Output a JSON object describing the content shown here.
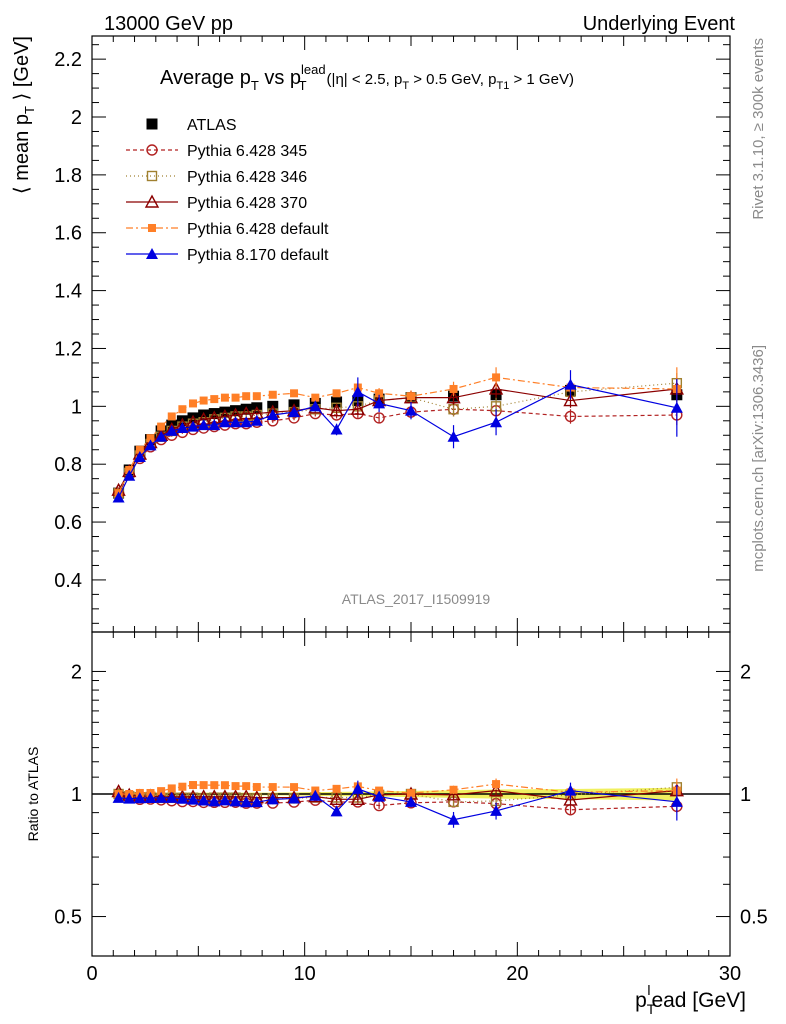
{
  "header": {
    "left": "13000 GeV pp",
    "right": "Underlying Event"
  },
  "title": {
    "main": "Average p",
    "main_sub": "T",
    "vs": " vs p",
    "vs_sup": "lead",
    "vs_sub": "T",
    "cuts_a": "(|η| < 2.5, p",
    "cuts_a_sub": "T",
    "cuts_b": " > 0.5 GeV, p",
    "cuts_b_sub": "T1",
    "cuts_c": " > 1 GeV)"
  },
  "side": {
    "rivet": "Rivet 3.1.10, ≥ 300k events",
    "mcplots": "mcplots.cern.ch [arXiv:1306.3436]"
  },
  "analysis_label": "ATLAS_2017_I1509919",
  "axes": {
    "ylabel_main": "⟨ mean p",
    "ylabel_main_sub": "T",
    "ylabel_main_end": " ⟩ [GeV]",
    "ylabel_ratio": "Ratio to ATLAS",
    "xlabel_p": "p",
    "xlabel_sub": "T",
    "xlabel_rest": "ead [GeV]",
    "xlabel_sup": "l"
  },
  "colors": {
    "atlas": "#000000",
    "p345": "#b22222",
    "p346": "#a08030",
    "p370": "#8b0000",
    "p6def": "#ff7f27",
    "p8def": "#0000e0",
    "band": "#f0f060",
    "band_inner": "#80e080"
  },
  "chart_data": [
    {
      "type": "scatter",
      "panel": "main",
      "xlim": [
        0,
        30
      ],
      "ylim": [
        0.22,
        2.28
      ],
      "x_ticks": [
        0,
        10,
        20,
        30
      ],
      "y_ticks": [
        0.4,
        0.6,
        0.8,
        1,
        1.2,
        1.4,
        1.6,
        1.8,
        2,
        2.2
      ],
      "x": [
        1.25,
        1.75,
        2.25,
        2.75,
        3.25,
        3.75,
        4.25,
        4.75,
        5.25,
        5.75,
        6.25,
        6.75,
        7.25,
        7.75,
        8.5,
        9.5,
        10.5,
        11.5,
        12.5,
        13.5,
        15,
        17,
        19,
        22.5,
        27.5
      ],
      "legend": {
        "placement": "top-left"
      },
      "series": [
        {
          "name": "ATLAS",
          "key": "atlas",
          "marker": "fsquare",
          "dash": "none",
          "values": [
            0.7,
            0.78,
            0.845,
            0.885,
            0.915,
            0.935,
            0.95,
            0.96,
            0.97,
            0.975,
            0.98,
            0.985,
            0.99,
            0.995,
            1.0,
            1.005,
            1.01,
            1.015,
            1.02,
            1.025,
            1.03,
            1.035,
            1.04,
            1.055,
            1.04
          ],
          "errors": [
            0.005,
            0.005,
            0.005,
            0.005,
            0.005,
            0.005,
            0.005,
            0.005,
            0.005,
            0.005,
            0.005,
            0.005,
            0.005,
            0.005,
            0.005,
            0.006,
            0.007,
            0.008,
            0.009,
            0.01,
            0.012,
            0.015,
            0.018,
            0.02,
            0.025
          ]
        },
        {
          "name": "Pythia 6.428 345",
          "key": "p345",
          "marker": "ocircle",
          "dash": "4,3",
          "values": [
            0.7,
            0.765,
            0.82,
            0.86,
            0.885,
            0.9,
            0.91,
            0.92,
            0.925,
            0.93,
            0.935,
            0.94,
            0.94,
            0.945,
            0.95,
            0.96,
            0.975,
            0.97,
            0.975,
            0.96,
            0.98,
            0.99,
            0.985,
            0.965,
            0.97
          ],
          "errors": [
            0.005,
            0.005,
            0.005,
            0.005,
            0.005,
            0.005,
            0.005,
            0.005,
            0.005,
            0.005,
            0.005,
            0.005,
            0.005,
            0.005,
            0.007,
            0.008,
            0.01,
            0.012,
            0.015,
            0.018,
            0.02,
            0.025,
            0.03,
            0.025,
            0.035
          ]
        },
        {
          "name": "Pythia 6.428 346",
          "key": "p346",
          "marker": "osquare",
          "dash": "1,3",
          "values": [
            0.7,
            0.77,
            0.83,
            0.87,
            0.895,
            0.915,
            0.93,
            0.94,
            0.945,
            0.955,
            0.96,
            0.965,
            0.965,
            0.97,
            0.975,
            0.98,
            0.99,
            0.995,
            1.0,
            1.02,
            1.03,
            0.99,
            1.0,
            1.05,
            1.08
          ],
          "errors": [
            0.005,
            0.005,
            0.005,
            0.005,
            0.005,
            0.005,
            0.005,
            0.005,
            0.005,
            0.005,
            0.005,
            0.005,
            0.005,
            0.005,
            0.007,
            0.008,
            0.01,
            0.012,
            0.015,
            0.018,
            0.02,
            0.025,
            0.03,
            0.025,
            0.035
          ]
        },
        {
          "name": "Pythia 6.428 370",
          "key": "p370",
          "marker": "otriangle",
          "dash": "none",
          "values": [
            0.71,
            0.775,
            0.835,
            0.875,
            0.9,
            0.92,
            0.935,
            0.945,
            0.955,
            0.96,
            0.965,
            0.97,
            0.975,
            0.975,
            0.98,
            0.985,
            0.995,
            0.985,
            0.99,
            1.02,
            1.03,
            1.03,
            1.06,
            1.02,
            1.06
          ],
          "errors": [
            0.005,
            0.005,
            0.005,
            0.005,
            0.005,
            0.005,
            0.005,
            0.005,
            0.005,
            0.005,
            0.005,
            0.005,
            0.005,
            0.005,
            0.007,
            0.008,
            0.01,
            0.012,
            0.015,
            0.018,
            0.02,
            0.025,
            0.03,
            0.025,
            0.035
          ]
        },
        {
          "name": "Pythia 6.428 default",
          "key": "p6def",
          "marker": "fsmallsquare",
          "dash": "7,3,2,3",
          "values": [
            0.7,
            0.78,
            0.85,
            0.89,
            0.93,
            0.965,
            0.99,
            1.01,
            1.02,
            1.025,
            1.03,
            1.03,
            1.035,
            1.035,
            1.04,
            1.045,
            1.03,
            1.045,
            1.065,
            1.045,
            1.035,
            1.06,
            1.1,
            1.065,
            1.06
          ],
          "errors": [
            0.005,
            0.005,
            0.005,
            0.005,
            0.005,
            0.005,
            0.005,
            0.005,
            0.005,
            0.005,
            0.005,
            0.005,
            0.005,
            0.005,
            0.007,
            0.008,
            0.01,
            0.012,
            0.015,
            0.018,
            0.02,
            0.025,
            0.035,
            0.025,
            0.075
          ]
        },
        {
          "name": "Pythia 8.170 default",
          "key": "p8def",
          "marker": "ftriangle",
          "dash": "none",
          "values": [
            0.685,
            0.76,
            0.825,
            0.865,
            0.895,
            0.915,
            0.925,
            0.93,
            0.935,
            0.935,
            0.945,
            0.945,
            0.945,
            0.95,
            0.97,
            0.98,
            1.0,
            0.92,
            1.05,
            1.01,
            0.985,
            0.895,
            0.945,
            1.075,
            0.995
          ],
          "errors": [
            0.005,
            0.005,
            0.005,
            0.005,
            0.005,
            0.005,
            0.005,
            0.005,
            0.005,
            0.005,
            0.005,
            0.005,
            0.005,
            0.005,
            0.008,
            0.01,
            0.015,
            0.02,
            0.05,
            0.03,
            0.03,
            0.04,
            0.045,
            0.05,
            0.1
          ]
        }
      ]
    },
    {
      "type": "scatter",
      "panel": "ratio",
      "xlim": [
        0,
        30
      ],
      "ylim": [
        0.4,
        2.5
      ],
      "log_y": true,
      "y_ticks": [
        0.5,
        1,
        2
      ],
      "x_ticks": [
        0,
        10,
        20,
        30
      ],
      "reference": 1
    }
  ]
}
